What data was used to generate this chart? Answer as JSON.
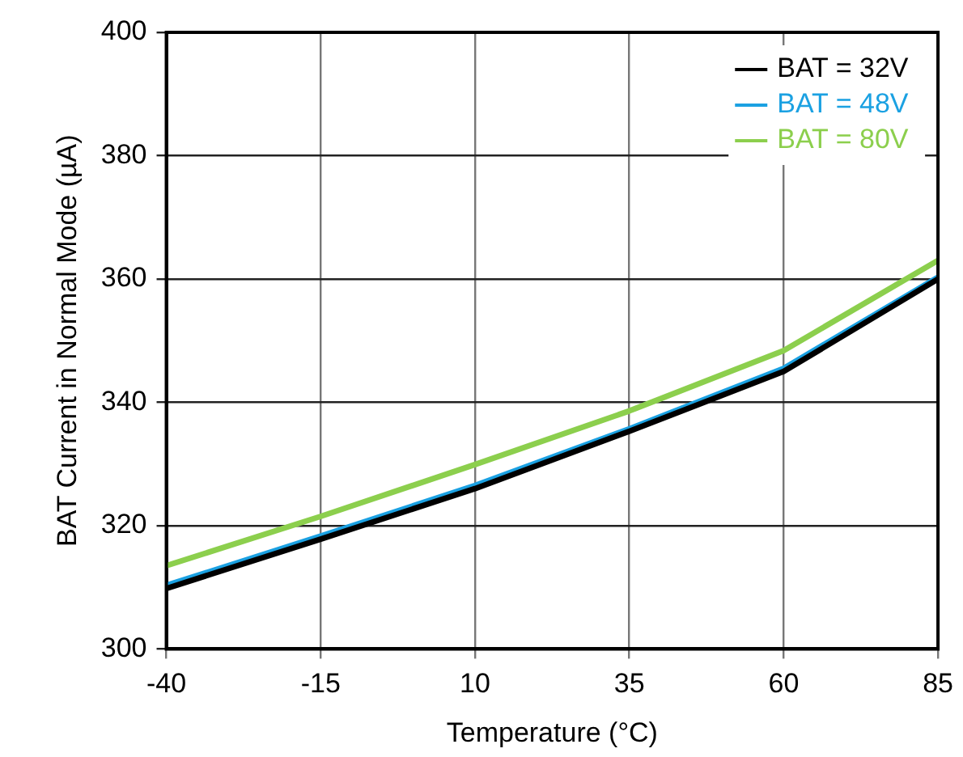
{
  "chart_data": {
    "type": "line",
    "xlabel": "Temperature (°C)",
    "ylabel": "BAT Current in Normal Mode (µA)",
    "x": [
      -40,
      -15,
      10,
      35,
      60,
      85
    ],
    "series": [
      {
        "name": "BAT = 32V",
        "color": "#000000",
        "values": [
          309.8,
          317.8,
          326,
          335.3,
          345,
          360
        ]
      },
      {
        "name": "BAT = 48V",
        "color": "#1ba1e2",
        "values": [
          310.3,
          318.3,
          326.5,
          335.7,
          345.5,
          360.3
        ]
      },
      {
        "name": "BAT = 80V",
        "color": "#8ccf4d",
        "values": [
          313.5,
          321.5,
          329.9,
          338.6,
          348.4,
          363
        ]
      }
    ],
    "xlim": [
      -40,
      85
    ],
    "xticks": [
      -40,
      -15,
      10,
      35,
      60,
      85
    ],
    "ylim": [
      300,
      400
    ],
    "yticks": [
      300,
      320,
      340,
      360,
      380,
      400
    ],
    "grid": true,
    "legend": "top right",
    "marker": "none",
    "line_style": "solid"
  }
}
